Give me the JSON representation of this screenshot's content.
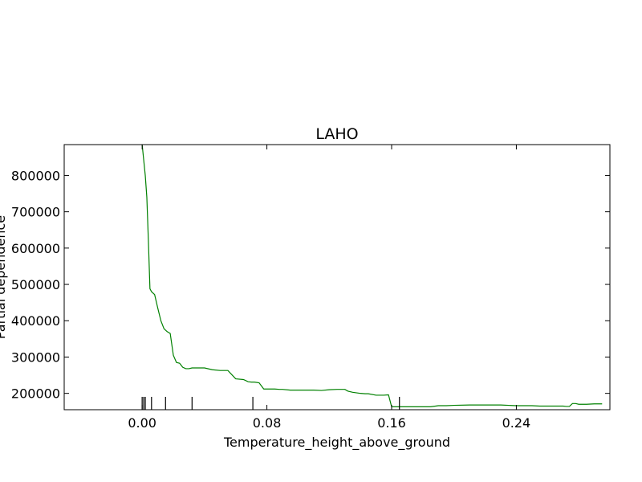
{
  "chart_data": {
    "type": "line",
    "title": "LAHO",
    "xlabel": "Temperature_height_above_ground",
    "ylabel": "Partial dependence",
    "xlim": [
      -0.05,
      0.3
    ],
    "ylim": [
      155000,
      885000
    ],
    "xticks": [
      0.0,
      0.08,
      0.16,
      0.24
    ],
    "xtick_labels": [
      "0.00",
      "0.08",
      "0.16",
      "0.24"
    ],
    "yticks": [
      200000,
      300000,
      400000,
      500000,
      600000,
      700000,
      800000
    ],
    "ytick_labels": [
      "200000",
      "300000",
      "400000",
      "500000",
      "600000",
      "700000",
      "800000"
    ],
    "grid": false,
    "series": [
      {
        "color": "#008000",
        "x": [
          0.0,
          0.002,
          0.003,
          0.004,
          0.005,
          0.006,
          0.008,
          0.01,
          0.012,
          0.014,
          0.016,
          0.018,
          0.02,
          0.022,
          0.024,
          0.026,
          0.028,
          0.03,
          0.032,
          0.034,
          0.036,
          0.04,
          0.045,
          0.05,
          0.055,
          0.06,
          0.065,
          0.068,
          0.07,
          0.072,
          0.075,
          0.078,
          0.08,
          0.085,
          0.088,
          0.09,
          0.095,
          0.1,
          0.105,
          0.11,
          0.115,
          0.12,
          0.125,
          0.13,
          0.132,
          0.135,
          0.14,
          0.143,
          0.145,
          0.15,
          0.155,
          0.158,
          0.16,
          0.162,
          0.164,
          0.166,
          0.168,
          0.17,
          0.175,
          0.18,
          0.185,
          0.19,
          0.195,
          0.2,
          0.21,
          0.22,
          0.23,
          0.24,
          0.25,
          0.255,
          0.26,
          0.265,
          0.27,
          0.272,
          0.274,
          0.276,
          0.278,
          0.28,
          0.285,
          0.29,
          0.295
        ],
        "y": [
          885000,
          800000,
          740000,
          620000,
          488000,
          480000,
          472000,
          435000,
          400000,
          378000,
          370000,
          365000,
          305000,
          285000,
          283000,
          272000,
          268000,
          268000,
          270000,
          270000,
          270000,
          270000,
          265000,
          263000,
          263000,
          240000,
          238000,
          232000,
          231000,
          231000,
          229000,
          212000,
          212000,
          212000,
          211000,
          211000,
          209000,
          209000,
          209000,
          209000,
          208000,
          210000,
          211000,
          211000,
          206000,
          203000,
          200000,
          199000,
          199000,
          195000,
          195000,
          196000,
          163000,
          163000,
          163000,
          163000,
          163000,
          163000,
          163000,
          163000,
          163000,
          166000,
          166000,
          167000,
          168000,
          168000,
          168000,
          166000,
          166000,
          165000,
          165000,
          165000,
          165000,
          164000,
          164000,
          172000,
          172000,
          170000,
          170000,
          171000,
          171000
        ]
      }
    ],
    "rug": [
      0.0,
      0.001,
      0.002,
      0.006,
      0.015,
      0.032,
      0.071,
      0.165
    ]
  }
}
